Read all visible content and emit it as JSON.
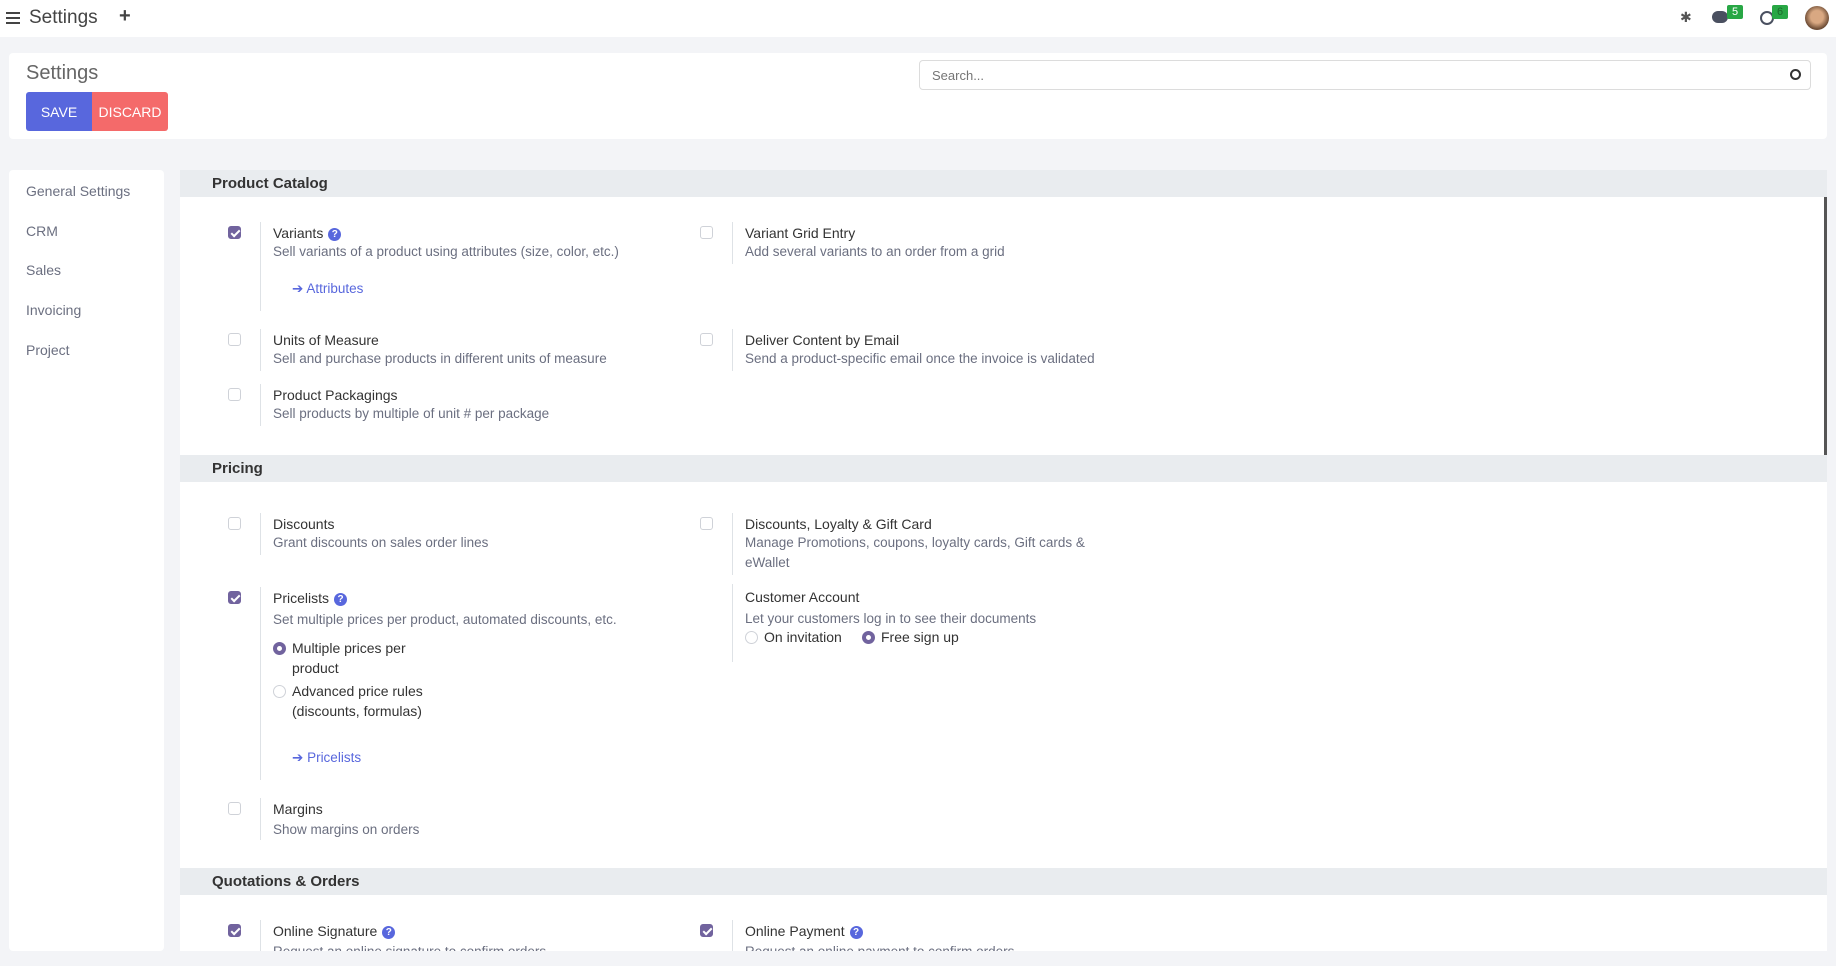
{
  "topbar": {
    "title": "Settings",
    "menu_icon": "hamburger-icon",
    "add_icon": "plus-icon",
    "messages_count": "5",
    "activities_count": "6"
  },
  "control_panel": {
    "title": "Settings",
    "save_label": "SAVE",
    "discard_label": "DISCARD",
    "search_placeholder": "Search..."
  },
  "colors": {
    "save": "#5867dd",
    "discard": "#f46a6a",
    "checkbox": "#71639e",
    "link": "#5867dd",
    "badge": "#28a745"
  },
  "sidebar": {
    "items": [
      {
        "label": "General Settings"
      },
      {
        "label": "CRM"
      },
      {
        "label": "Sales"
      },
      {
        "label": "Invoicing"
      },
      {
        "label": "Project"
      }
    ]
  },
  "sections": {
    "catalog": {
      "title": "Product Catalog",
      "variants": {
        "label": "Variants",
        "desc": "Sell variants of a product using attributes (size, color, etc.)",
        "checked": true,
        "link": "Attributes"
      },
      "grid": {
        "label": "Variant Grid Entry",
        "desc": "Add several variants to an order from a grid",
        "checked": false
      },
      "uom": {
        "label": "Units of Measure",
        "desc": "Sell and purchase products in different units of measure",
        "checked": false
      },
      "email": {
        "label": "Deliver Content by Email",
        "desc": "Send a product-specific email once the invoice is validated",
        "checked": false
      },
      "pack": {
        "label": "Product Packagings",
        "desc": "Sell products by multiple of unit # per package",
        "checked": false
      }
    },
    "pricing": {
      "title": "Pricing",
      "discounts": {
        "label": "Discounts",
        "desc": "Grant discounts on sales order lines",
        "checked": false
      },
      "loyalty": {
        "label": "Discounts, Loyalty & Gift Card",
        "desc": "Manage Promotions, coupons, loyalty cards, Gift cards & eWallet",
        "checked": false
      },
      "pricelists": {
        "label": "Pricelists",
        "desc": "Set multiple prices per product, automated discounts, etc.",
        "checked": true,
        "opt1": "Multiple prices per product",
        "opt2": "Advanced price rules (discounts, formulas)",
        "selected": "Multiple prices per product",
        "link": "Pricelists"
      },
      "account": {
        "label": "Customer Account",
        "desc": "Let your customers log in to see their documents",
        "opt1": "On invitation",
        "opt2": "Free sign up",
        "selected": "Free sign up"
      },
      "margins": {
        "label": "Margins",
        "desc": "Show margins on orders",
        "checked": false
      }
    },
    "quotes": {
      "title": "Quotations & Orders",
      "signature": {
        "label": "Online Signature",
        "desc": "Request an online signature to confirm orders",
        "checked": true
      },
      "payment": {
        "label": "Online Payment",
        "desc": "Request an online payment to confirm orders",
        "checked": true
      }
    }
  }
}
